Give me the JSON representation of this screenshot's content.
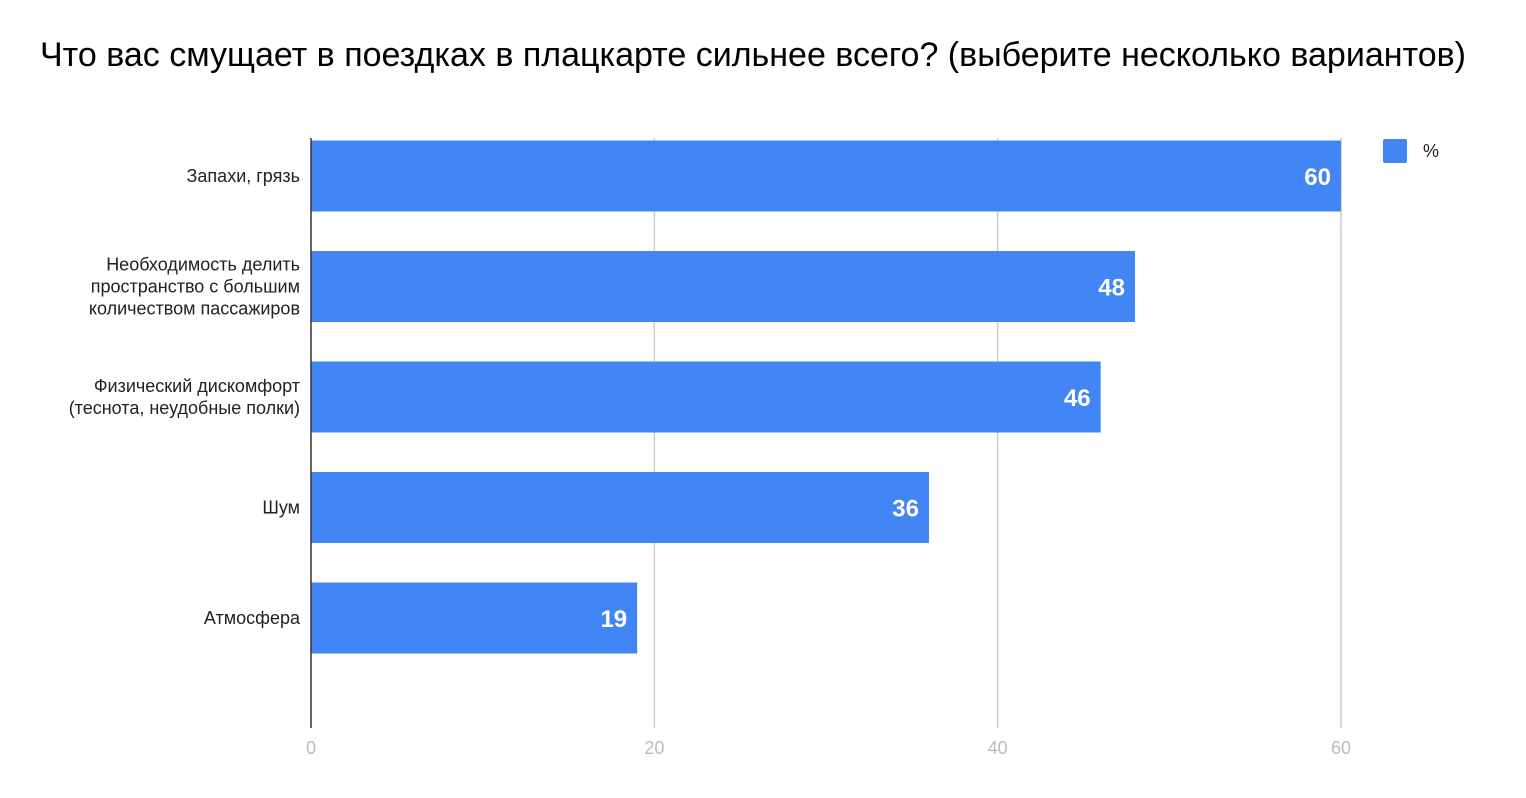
{
  "chart_data": {
    "type": "bar",
    "orientation": "horizontal",
    "title": "Что вас смущает в поездках в плацкарте сильнее всего? (выберите несколько вариантов)",
    "categories": [
      [
        "Запахи, грязь"
      ],
      [
        "Необходимость делить",
        "пространство с большим",
        "количеством пассажиров"
      ],
      [
        "Физический дискомфорт",
        "(теснота, неудобные полки)"
      ],
      [
        "Шум"
      ],
      [
        "Атмосфера"
      ]
    ],
    "series": [
      {
        "name": "%",
        "values": [
          60,
          48,
          46,
          36,
          19
        ],
        "color": "#4285f4"
      }
    ],
    "xlim": [
      0,
      66
    ],
    "xticks": [
      0,
      20,
      40,
      60
    ],
    "grid": true,
    "legend": "top-right",
    "data_labels": true
  }
}
